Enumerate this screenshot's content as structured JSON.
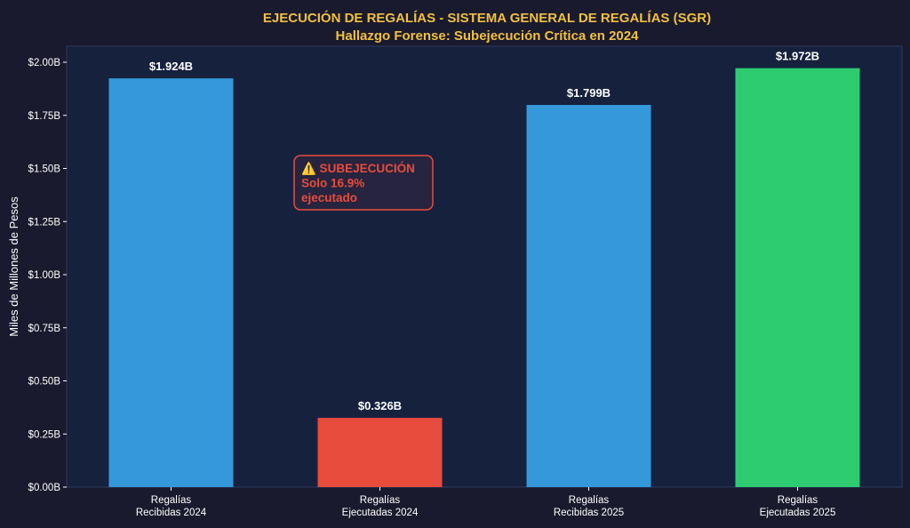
{
  "colors": {
    "background": "#1a1a2e",
    "plot_background": "#16213e",
    "title": "#f0c040",
    "text": "#ffffff",
    "alert": "#e74c3c",
    "blue": "#3498db",
    "red": "#e74c3c",
    "green": "#2ecc71"
  },
  "chart_data": {
    "type": "bar",
    "title": "EJECUCIÓN DE REGALÍAS - SISTEMA GENERAL DE REGALÍAS (SGR)",
    "subtitle": "Hallazgo Forense: Subejecución Crítica en 2024",
    "xlabel": "",
    "ylabel": "Miles de Millones de Pesos",
    "ylim": [
      0,
      2.0
    ],
    "yticks": [
      0,
      0.25,
      0.5,
      0.75,
      1.0,
      1.25,
      1.5,
      1.75,
      2.0
    ],
    "ytick_labels": [
      "$0.00B",
      "$0.25B",
      "$0.50B",
      "$0.75B",
      "$1.00B",
      "$1.25B",
      "$1.50B",
      "$1.75B",
      "$2.00B"
    ],
    "categories": [
      [
        "Regalías",
        "Recibidas 2024"
      ],
      [
        "Regalías",
        "Ejecutadas 2024"
      ],
      [
        "Regalías",
        "Recibidas 2025"
      ],
      [
        "Regalías",
        "Ejecutadas 2025"
      ]
    ],
    "values": [
      1.924,
      0.326,
      1.799,
      1.972
    ],
    "value_labels": [
      "$1.924B",
      "$0.326B",
      "$1.799B",
      "$1.972B"
    ],
    "bar_colors": [
      "#3498db",
      "#e74c3c",
      "#3498db",
      "#2ecc71"
    ],
    "grid": false,
    "annotation": {
      "lines": [
        "⚠️ SUBEJECUCIÓN",
        "Solo 16.9%",
        "ejecutado"
      ],
      "color": "#e74c3c"
    }
  }
}
